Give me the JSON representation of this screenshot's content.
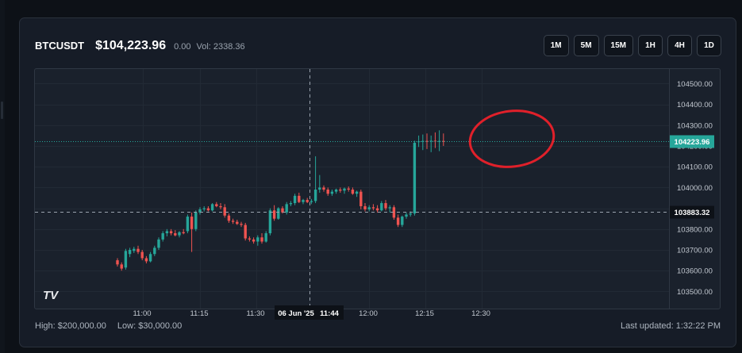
{
  "header": {
    "symbol": "BTCUSDT",
    "price": "$104,223.96",
    "change": "0.00",
    "volume_label": "Vol:",
    "volume_value": "2338.36"
  },
  "timeframes": [
    "1M",
    "5M",
    "15M",
    "1H",
    "4H",
    "1D"
  ],
  "chart_data": {
    "type": "candlestick",
    "x_ticks": [
      "11:00",
      "11:15",
      "11:30",
      "11:44",
      "12:00",
      "12:15",
      "12:30"
    ],
    "crosshair_date_label": "06 Jun '25",
    "crosshair_time_label": "11:44",
    "y_ticks": [
      104500,
      104400,
      104300,
      104200,
      104100,
      104000,
      103900,
      103800,
      103700,
      103600,
      103500
    ],
    "y_tick_labels": [
      "104500.00",
      "104400.00",
      "104300.00",
      "104200.00",
      "104100.00",
      "104000.00",
      "103900.00",
      "103800.00",
      "103700.00",
      "103600.00",
      "103500.00"
    ],
    "ylim": [
      103410,
      104570
    ],
    "last_price": 104223.96,
    "last_price_label": "104223.96",
    "crosshair_price": 103883.32,
    "crosshair_price_label": "103883.32",
    "up_color": "#26a69a",
    "down_color": "#ef5350",
    "candles": [
      {
        "o": 103650,
        "h": 103660,
        "l": 103620,
        "c": 103630
      },
      {
        "o": 103630,
        "h": 103640,
        "l": 103600,
        "c": 103610
      },
      {
        "o": 103615,
        "h": 103705,
        "l": 103605,
        "c": 103695
      },
      {
        "o": 103680,
        "h": 103710,
        "l": 103665,
        "c": 103700
      },
      {
        "o": 103695,
        "h": 103715,
        "l": 103685,
        "c": 103705
      },
      {
        "o": 103705,
        "h": 103720,
        "l": 103680,
        "c": 103690
      },
      {
        "o": 103690,
        "h": 103700,
        "l": 103650,
        "c": 103660
      },
      {
        "o": 103660,
        "h": 103670,
        "l": 103635,
        "c": 103645
      },
      {
        "o": 103645,
        "h": 103690,
        "l": 103640,
        "c": 103680
      },
      {
        "o": 103680,
        "h": 103720,
        "l": 103670,
        "c": 103710
      },
      {
        "o": 103710,
        "h": 103760,
        "l": 103700,
        "c": 103750
      },
      {
        "o": 103750,
        "h": 103790,
        "l": 103740,
        "c": 103780
      },
      {
        "o": 103780,
        "h": 103800,
        "l": 103765,
        "c": 103790
      },
      {
        "o": 103790,
        "h": 103800,
        "l": 103770,
        "c": 103780
      },
      {
        "o": 103780,
        "h": 103795,
        "l": 103765,
        "c": 103770
      },
      {
        "o": 103770,
        "h": 103790,
        "l": 103760,
        "c": 103785
      },
      {
        "o": 103785,
        "h": 103800,
        "l": 103775,
        "c": 103780
      },
      {
        "o": 103790,
        "h": 103870,
        "l": 103780,
        "c": 103860
      },
      {
        "o": 103860,
        "h": 103880,
        "l": 103690,
        "c": 103800
      },
      {
        "o": 103800,
        "h": 103890,
        "l": 103790,
        "c": 103880
      },
      {
        "o": 103880,
        "h": 103905,
        "l": 103870,
        "c": 103895
      },
      {
        "o": 103895,
        "h": 103910,
        "l": 103885,
        "c": 103900
      },
      {
        "o": 103900,
        "h": 103910,
        "l": 103885,
        "c": 103890
      },
      {
        "o": 103890,
        "h": 103925,
        "l": 103885,
        "c": 103920
      },
      {
        "o": 103920,
        "h": 103930,
        "l": 103905,
        "c": 103910
      },
      {
        "o": 103910,
        "h": 103925,
        "l": 103895,
        "c": 103905
      },
      {
        "o": 103905,
        "h": 103920,
        "l": 103855,
        "c": 103865
      },
      {
        "o": 103865,
        "h": 103875,
        "l": 103830,
        "c": 103840
      },
      {
        "o": 103840,
        "h": 103850,
        "l": 103825,
        "c": 103835
      },
      {
        "o": 103835,
        "h": 103845,
        "l": 103820,
        "c": 103825
      },
      {
        "o": 103825,
        "h": 103835,
        "l": 103810,
        "c": 103820
      },
      {
        "o": 103820,
        "h": 103830,
        "l": 103745,
        "c": 103755
      },
      {
        "o": 103755,
        "h": 103765,
        "l": 103740,
        "c": 103750
      },
      {
        "o": 103750,
        "h": 103760,
        "l": 103730,
        "c": 103740
      },
      {
        "o": 103740,
        "h": 103770,
        "l": 103720,
        "c": 103760
      },
      {
        "o": 103760,
        "h": 103780,
        "l": 103730,
        "c": 103740
      },
      {
        "o": 103740,
        "h": 103790,
        "l": 103735,
        "c": 103780
      },
      {
        "o": 103780,
        "h": 103900,
        "l": 103770,
        "c": 103890
      },
      {
        "o": 103890,
        "h": 103915,
        "l": 103840,
        "c": 103850
      },
      {
        "o": 103850,
        "h": 103905,
        "l": 103845,
        "c": 103900
      },
      {
        "o": 103900,
        "h": 103910,
        "l": 103875,
        "c": 103880
      },
      {
        "o": 103880,
        "h": 103930,
        "l": 103870,
        "c": 103920
      },
      {
        "o": 103920,
        "h": 103935,
        "l": 103910,
        "c": 103925
      },
      {
        "o": 103925,
        "h": 103970,
        "l": 103915,
        "c": 103960
      },
      {
        "o": 103960,
        "h": 103975,
        "l": 103925,
        "c": 103930
      },
      {
        "o": 103930,
        "h": 103945,
        "l": 103920,
        "c": 103940
      },
      {
        "o": 103940,
        "h": 103950,
        "l": 103925,
        "c": 103930
      },
      {
        "o": 103930,
        "h": 103945,
        "l": 103920,
        "c": 103935
      },
      {
        "o": 103935,
        "h": 104150,
        "l": 103925,
        "c": 103990
      },
      {
        "o": 103990,
        "h": 104060,
        "l": 103975,
        "c": 104000
      },
      {
        "o": 104000,
        "h": 104010,
        "l": 103980,
        "c": 103990
      },
      {
        "o": 103990,
        "h": 104000,
        "l": 103960,
        "c": 103970
      },
      {
        "o": 103970,
        "h": 103990,
        "l": 103960,
        "c": 103980
      },
      {
        "o": 103980,
        "h": 103995,
        "l": 103970,
        "c": 103990
      },
      {
        "o": 103990,
        "h": 104000,
        "l": 103975,
        "c": 103985
      },
      {
        "o": 103985,
        "h": 104000,
        "l": 103970,
        "c": 103995
      },
      {
        "o": 103995,
        "h": 104005,
        "l": 103980,
        "c": 103990
      },
      {
        "o": 103990,
        "h": 104000,
        "l": 103965,
        "c": 103970
      },
      {
        "o": 103970,
        "h": 103985,
        "l": 103955,
        "c": 103980
      },
      {
        "o": 103980,
        "h": 103990,
        "l": 103895,
        "c": 103910
      },
      {
        "o": 103910,
        "h": 103925,
        "l": 103885,
        "c": 103895
      },
      {
        "o": 103895,
        "h": 103915,
        "l": 103885,
        "c": 103905
      },
      {
        "o": 103905,
        "h": 103920,
        "l": 103890,
        "c": 103900
      },
      {
        "o": 103900,
        "h": 103915,
        "l": 103880,
        "c": 103890
      },
      {
        "o": 103890,
        "h": 103935,
        "l": 103885,
        "c": 103925
      },
      {
        "o": 103925,
        "h": 103940,
        "l": 103890,
        "c": 103900
      },
      {
        "o": 103900,
        "h": 103915,
        "l": 103880,
        "c": 103905
      },
      {
        "o": 103905,
        "h": 103915,
        "l": 103845,
        "c": 103855
      },
      {
        "o": 103855,
        "h": 103870,
        "l": 103810,
        "c": 103820
      },
      {
        "o": 103820,
        "h": 103865,
        "l": 103810,
        "c": 103860
      },
      {
        "o": 103860,
        "h": 103880,
        "l": 103850,
        "c": 103870
      },
      {
        "o": 103870,
        "h": 103885,
        "l": 103860,
        "c": 103875
      },
      {
        "o": 103875,
        "h": 104225,
        "l": 103865,
        "c": 104215
      },
      {
        "o": 104220,
        "h": 104250,
        "l": 104195,
        "c": 104222
      },
      {
        "o": 104222,
        "h": 104255,
        "l": 104180,
        "c": 104224
      },
      {
        "o": 104224,
        "h": 104260,
        "l": 104185,
        "c": 104223
      },
      {
        "o": 104223,
        "h": 104250,
        "l": 104170,
        "c": 104225
      },
      {
        "o": 104225,
        "h": 104265,
        "l": 104190,
        "c": 104222
      },
      {
        "o": 104222,
        "h": 104275,
        "l": 104175,
        "c": 104224
      },
      {
        "o": 104224,
        "h": 104260,
        "l": 104200,
        "c": 104223.96
      }
    ]
  },
  "footer": {
    "high": "High: $200,000.00",
    "low": "Low: $30,000.00",
    "last_updated": "Last updated: 1:32:22 PM"
  },
  "watermark": "TV",
  "annotation_color": "#e0202a"
}
